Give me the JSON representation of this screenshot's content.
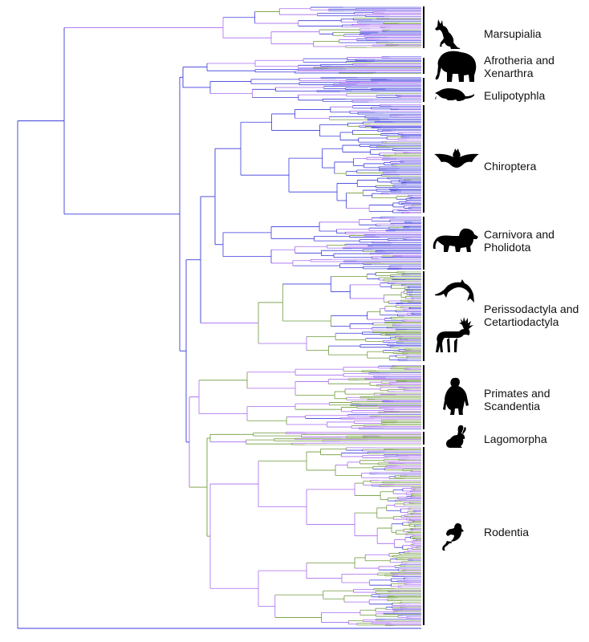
{
  "colors": {
    "blue": "#3b3bdc",
    "purple": "#a86af0",
    "green": "#6f9a3a",
    "bracket": "#000000",
    "silhouette": "#000000"
  },
  "clades": [
    {
      "id": "marsupialia",
      "lines": [
        "Marsupialia"
      ],
      "icon": "kangaroo-icon"
    },
    {
      "id": "afrotheria",
      "lines": [
        "Afrotheria and",
        "Xenarthra"
      ],
      "icon": "elephant-icon"
    },
    {
      "id": "eulipotyphla",
      "lines": [
        "Eulipotyphla"
      ],
      "icon": "shrew-icon"
    },
    {
      "id": "chiroptera",
      "lines": [
        "Chiroptera"
      ],
      "icon": "bat-icon"
    },
    {
      "id": "carnivora",
      "lines": [
        "Carnivora and",
        "Pholidota"
      ],
      "icon": "lion-icon"
    },
    {
      "id": "cetartiodactyla",
      "lines": [
        "Perissodactyla and",
        "Cetartiodactyla"
      ],
      "icon": "dolphin-icon"
    },
    {
      "id": "primates",
      "lines": [
        "Primates and",
        "Scandentia"
      ],
      "icon": "gorilla-icon"
    },
    {
      "id": "lagomorpha",
      "lines": [
        "Lagomorpha"
      ],
      "icon": "rabbit-icon"
    },
    {
      "id": "rodentia",
      "lines": [
        "Rodentia"
      ],
      "icon": "mouse-icon"
    }
  ]
}
